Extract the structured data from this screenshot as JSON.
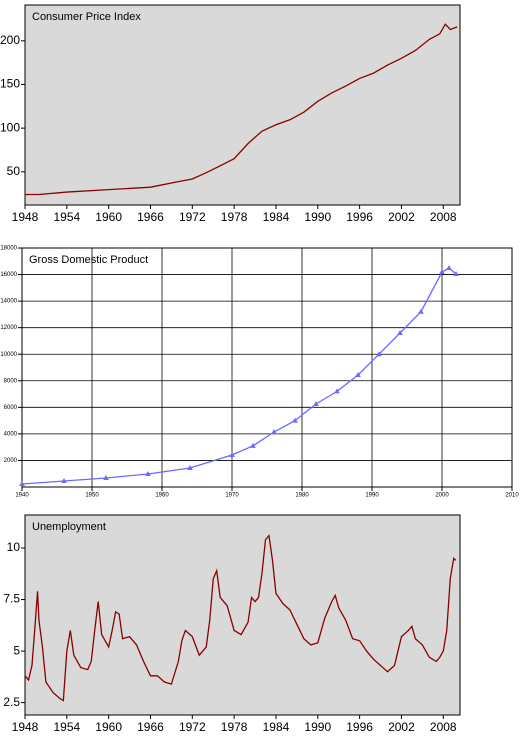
{
  "chart_data": [
    {
      "type": "line",
      "title": "Consumer Price Index",
      "color": "#8b0000",
      "background": "#d9d9d9",
      "grid": false,
      "x": [
        1948,
        1950,
        1954,
        1960,
        1966,
        1970,
        1972,
        1974,
        1976,
        1978,
        1980,
        1982,
        1984,
        1986,
        1988,
        1990,
        1992,
        1994,
        1996,
        1998,
        2000,
        2002,
        2004,
        2006,
        2007.5,
        2008.3,
        2009,
        2010
      ],
      "values": [
        24,
        24,
        26.8,
        29.6,
        32.4,
        38.8,
        41.8,
        49,
        56.9,
        65,
        82.4,
        96.5,
        103.9,
        109.6,
        118.3,
        130.7,
        140.3,
        148.2,
        156.9,
        163,
        172.2,
        179.9,
        188.9,
        201.6,
        208,
        219,
        213,
        216
      ],
      "xlim": [
        1948,
        2010.4
      ],
      "xticks": [
        1948,
        1954,
        1960,
        1966,
        1972,
        1978,
        1984,
        1990,
        1996,
        2002,
        2008
      ],
      "ylim": [
        12,
        241
      ],
      "yticks": [
        50,
        100,
        150,
        200
      ]
    },
    {
      "type": "line",
      "title": "Gross Domestic Product",
      "color": "#6a6aff",
      "background": "#ffffff",
      "grid": true,
      "markers": true,
      "x": [
        1940,
        1946,
        1952,
        1958,
        1964,
        1970,
        1973,
        1976,
        1979,
        1982,
        1985,
        1988,
        1991,
        1994,
        1997,
        2000,
        2001,
        2002
      ],
      "values": [
        226,
        452,
        678,
        979,
        1431,
        2410,
        3100,
        4142,
        5000,
        6251,
        7200,
        8435,
        10000,
        11598,
        13200,
        16192,
        16490,
        16042
      ],
      "xlim": [
        1940,
        2010
      ],
      "xticks": [
        1940,
        1950,
        1960,
        1970,
        1980,
        1990,
        2000,
        2010
      ],
      "ylim": [
        0,
        18000
      ],
      "yticks": [
        2000,
        4000,
        6000,
        8000,
        10000,
        12000,
        14000,
        16000,
        18000
      ]
    },
    {
      "type": "line",
      "title": "Unemployment",
      "color": "#8b0000",
      "background": "#d9d9d9",
      "grid": false,
      "x": [
        1948,
        1948.5,
        1949,
        1949.5,
        1949.8,
        1950,
        1950.5,
        1951,
        1952,
        1953,
        1953.5,
        1954,
        1954.5,
        1955,
        1956,
        1957,
        1957.5,
        1958,
        1958.5,
        1959,
        1960,
        1960.5,
        1961,
        1961.5,
        1962,
        1963,
        1964,
        1965,
        1966,
        1967,
        1968,
        1969,
        1970,
        1970.5,
        1971,
        1972,
        1973,
        1974,
        1974.5,
        1975,
        1975.5,
        1976,
        1977,
        1978,
        1979,
        1980,
        1980.5,
        1981,
        1981.5,
        1982,
        1982.5,
        1983,
        1983.5,
        1984,
        1985,
        1986,
        1987,
        1988,
        1989,
        1990,
        1991,
        1992,
        1992.5,
        1993,
        1994,
        1995,
        1996,
        1997,
        1998,
        1999,
        2000,
        2001,
        2001.5,
        2002,
        2003,
        2003.5,
        2004,
        2005,
        2006,
        2007,
        2007.5,
        2008,
        2008.5,
        2009,
        2009.5,
        2009.8
      ],
      "values": [
        3.8,
        3.6,
        4.3,
        6.5,
        7.9,
        6.5,
        5.2,
        3.5,
        3.0,
        2.7,
        2.6,
        5.0,
        6.0,
        4.8,
        4.2,
        4.1,
        4.5,
        6.0,
        7.4,
        5.8,
        5.2,
        6.0,
        6.9,
        6.8,
        5.6,
        5.7,
        5.3,
        4.5,
        3.8,
        3.8,
        3.5,
        3.4,
        4.5,
        5.5,
        6.0,
        5.7,
        4.8,
        5.2,
        6.5,
        8.5,
        8.9,
        7.6,
        7.2,
        6.0,
        5.8,
        6.4,
        7.6,
        7.4,
        7.6,
        8.8,
        10.4,
        10.6,
        9.4,
        7.8,
        7.3,
        7.0,
        6.3,
        5.6,
        5.3,
        5.4,
        6.6,
        7.4,
        7.7,
        7.1,
        6.5,
        5.6,
        5.5,
        5.0,
        4.6,
        4.3,
        4.0,
        4.3,
        5.0,
        5.7,
        6.0,
        6.2,
        5.6,
        5.3,
        4.7,
        4.5,
        4.7,
        5.0,
        6.0,
        8.5,
        9.5,
        9.4
      ],
      "xlim": [
        1948,
        2010.4
      ],
      "xticks": [
        1948,
        1954,
        1960,
        1966,
        1972,
        1978,
        1984,
        1990,
        1996,
        2002,
        2008
      ],
      "ylim": [
        1.9,
        11.6
      ],
      "yticks": [
        2.5,
        5,
        7.5,
        10
      ]
    }
  ]
}
